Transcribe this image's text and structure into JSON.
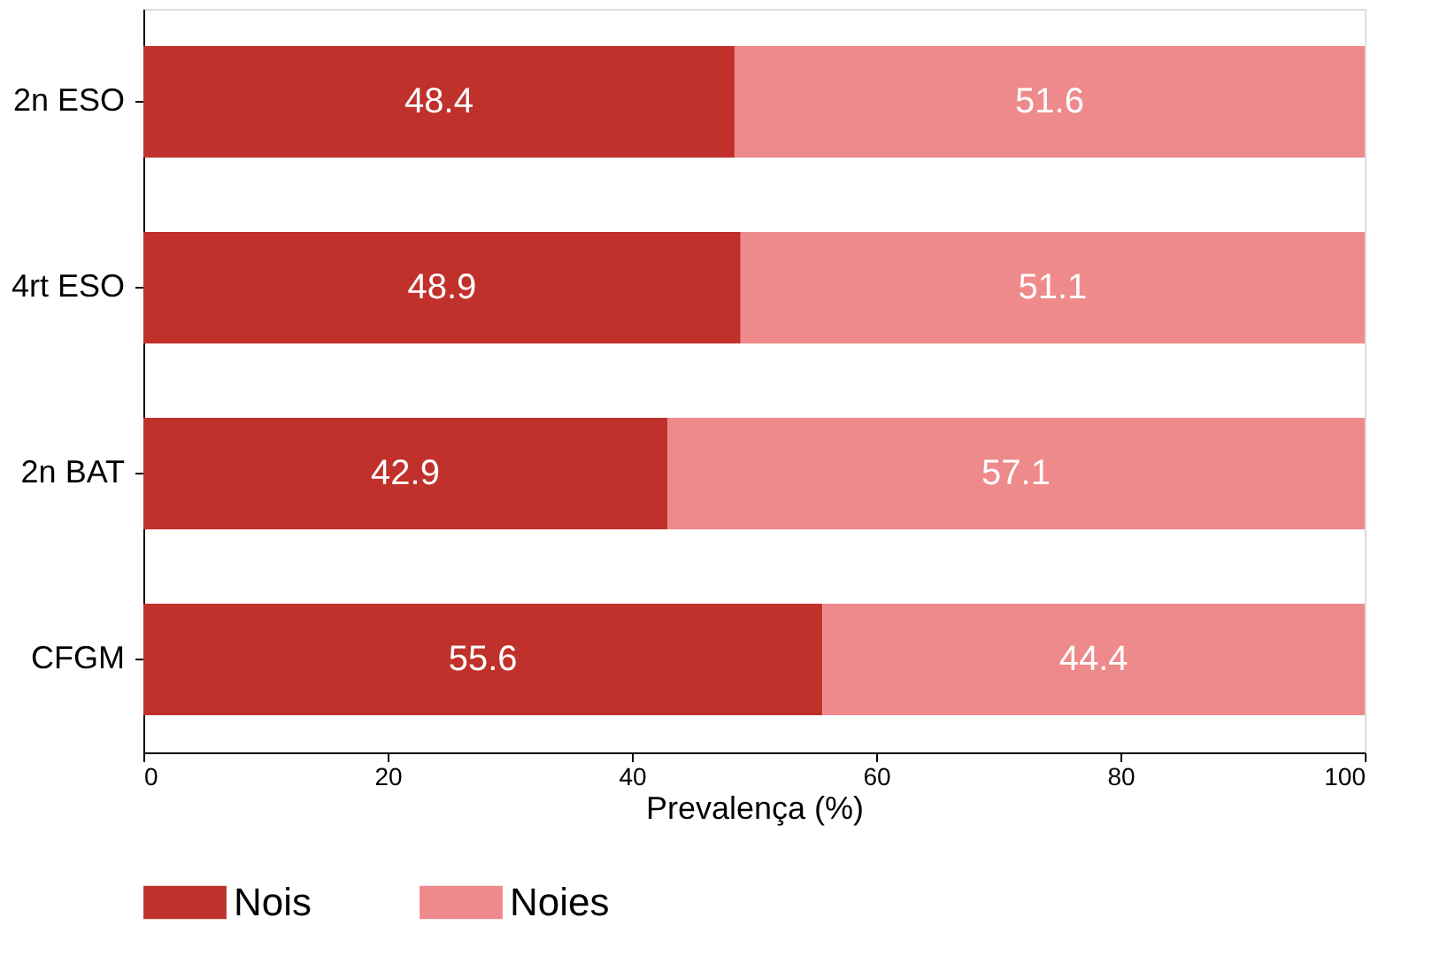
{
  "chart_data": {
    "type": "bar",
    "orientation": "horizontal",
    "stacked": true,
    "xlabel": "Prevalença (%)",
    "categories": [
      "2n ESO",
      "4rt ESO",
      "2n BAT",
      "CFGM"
    ],
    "series": [
      {
        "name": "Nois",
        "color": "#c0312b",
        "values": [
          48.4,
          48.9,
          42.9,
          55.6
        ]
      },
      {
        "name": "Noies",
        "color": "#ee8a8b",
        "values": [
          51.6,
          51.1,
          57.1,
          44.4
        ]
      }
    ],
    "xlim": [
      0,
      100
    ],
    "xticks": [
      0,
      20,
      40,
      60,
      80,
      100
    ],
    "data_labels": true,
    "legend": "bottom",
    "grid": false
  }
}
